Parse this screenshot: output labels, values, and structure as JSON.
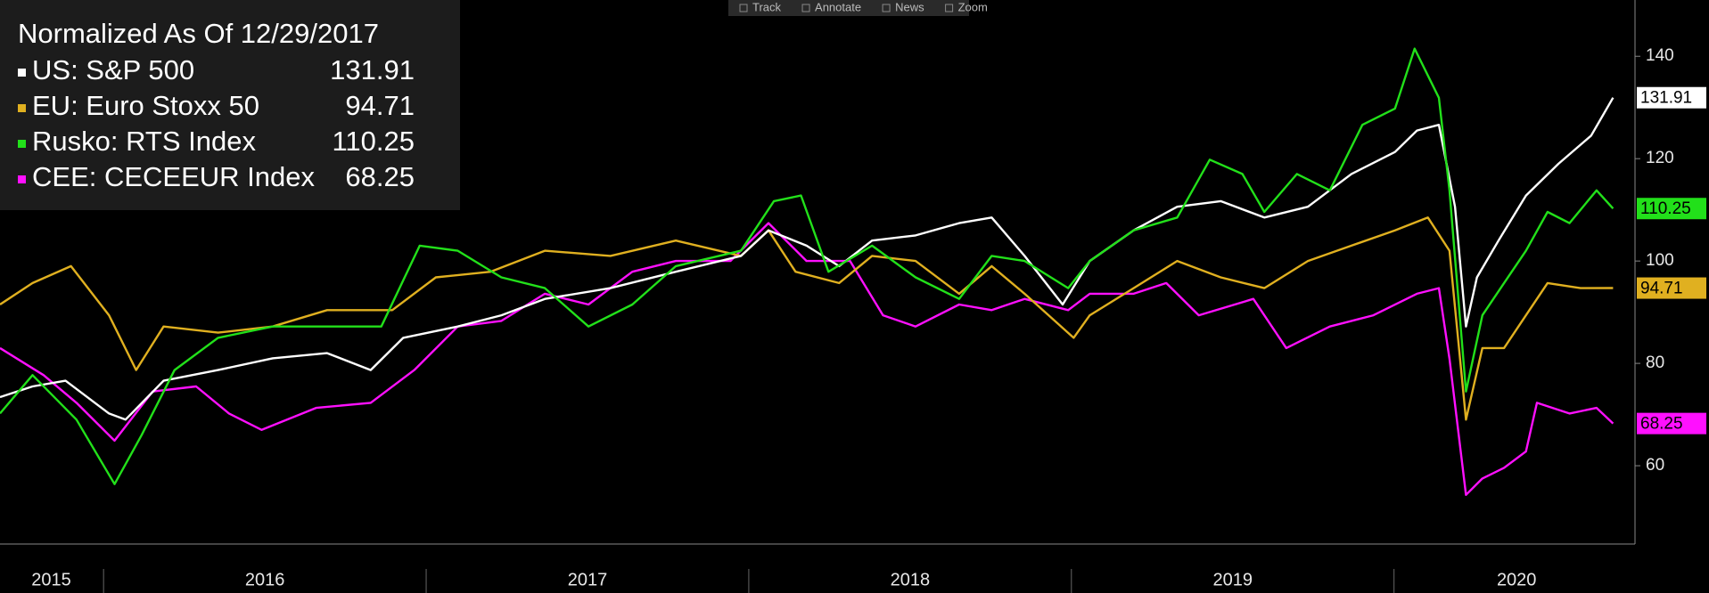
{
  "chart_data": {
    "type": "line",
    "title": "Normalized As Of 12/29/2017",
    "toolbar": [
      "Track",
      "Annotate",
      "News",
      "Zoom"
    ],
    "xlim": [
      2015.679,
      2020.747
    ],
    "ylim": [
      44.7,
      151
    ],
    "yticks": [
      60,
      80,
      100,
      120,
      140
    ],
    "xticks": [
      {
        "value": 2015.838,
        "label": "2015"
      },
      {
        "value": 2016.5,
        "label": "2016"
      },
      {
        "value": 2017.5,
        "label": "2017"
      },
      {
        "value": 2018.5,
        "label": "2018"
      },
      {
        "value": 2019.5,
        "label": "2019"
      },
      {
        "value": 2020.38,
        "label": "2020"
      }
    ],
    "xminor": [
      2016,
      2017,
      2018,
      2019,
      2020
    ],
    "series": [
      {
        "name": "US: S&P 500",
        "last": "131.91",
        "color": "#ffffff",
        "x": [
          2015.679,
          2015.78,
          2015.882,
          2016.017,
          2016.068,
          2016.186,
          2016.355,
          2016.524,
          2016.693,
          2016.828,
          2016.929,
          2017.098,
          2017.233,
          2017.368,
          2017.571,
          2017.774,
          2017.976,
          2018.061,
          2018.179,
          2018.28,
          2018.382,
          2018.517,
          2018.652,
          2018.753,
          2018.855,
          2018.973,
          2019.057,
          2019.193,
          2019.328,
          2019.463,
          2019.598,
          2019.733,
          2019.868,
          2020.003,
          2020.071,
          2020.139,
          2020.189,
          2020.223,
          2020.257,
          2020.324,
          2020.409,
          2020.51,
          2020.611,
          2020.679
        ],
        "values": [
          73.4,
          75.5,
          76.6,
          70.2,
          69,
          76.6,
          78.7,
          81,
          82,
          78.7,
          85,
          87.2,
          89.4,
          92.6,
          94.7,
          97.9,
          101,
          106,
          103,
          99,
          104,
          105,
          107.4,
          108.5,
          101,
          91.5,
          100,
          106,
          110.6,
          111.7,
          108.5,
          110.6,
          117,
          121.3,
          125.5,
          126.6,
          110.6,
          87.2,
          96.8,
          104,
          112.8,
          119,
          124.5,
          131.91
        ]
      },
      {
        "name": "EU: Euro Stoxx 50",
        "last": "94.71",
        "color": "#e0b020",
        "x": [
          2015.679,
          2015.78,
          2015.899,
          2016.017,
          2016.101,
          2016.186,
          2016.355,
          2016.524,
          2016.693,
          2016.895,
          2017.03,
          2017.199,
          2017.368,
          2017.571,
          2017.774,
          2017.976,
          2018.061,
          2018.145,
          2018.28,
          2018.382,
          2018.517,
          2018.652,
          2018.753,
          2018.855,
          2019.007,
          2019.057,
          2019.193,
          2019.328,
          2019.463,
          2019.598,
          2019.733,
          2019.868,
          2020.003,
          2020.105,
          2020.172,
          2020.223,
          2020.274,
          2020.341,
          2020.409,
          2020.476,
          2020.578,
          2020.679
        ],
        "values": [
          91.5,
          95.7,
          99,
          89.4,
          78.7,
          87.2,
          86,
          87.2,
          90.4,
          90.4,
          96.8,
          97.9,
          102,
          101,
          104,
          101,
          106,
          97.9,
          95.7,
          101,
          100,
          93.6,
          99,
          93.6,
          85,
          89.4,
          94.7,
          100,
          96.8,
          94.7,
          100,
          103,
          106,
          108.5,
          102,
          69,
          83,
          83,
          89.4,
          95.7,
          94.7,
          94.71
        ]
      },
      {
        "name": "Rusko: RTS Index",
        "last": "110.25",
        "color": "#22e01a",
        "x": [
          2015.679,
          2015.78,
          2015.916,
          2016.034,
          2016.118,
          2016.22,
          2016.355,
          2016.524,
          2016.693,
          2016.861,
          2016.98,
          2017.098,
          2017.233,
          2017.368,
          2017.503,
          2017.639,
          2017.774,
          2017.976,
          2018.078,
          2018.162,
          2018.247,
          2018.382,
          2018.517,
          2018.652,
          2018.753,
          2018.855,
          2018.99,
          2019.057,
          2019.193,
          2019.328,
          2019.429,
          2019.53,
          2019.598,
          2019.699,
          2019.801,
          2019.902,
          2020.003,
          2020.064,
          2020.139,
          2020.172,
          2020.223,
          2020.274,
          2020.341,
          2020.409,
          2020.476,
          2020.544,
          2020.628,
          2020.679
        ],
        "values": [
          70.2,
          77.7,
          69,
          56.4,
          66,
          78.7,
          85,
          87.2,
          87.2,
          87.2,
          103,
          102,
          96.8,
          94.7,
          87.2,
          91.5,
          99,
          102,
          111.7,
          112.8,
          97.9,
          103,
          96.8,
          92.6,
          101,
          100,
          94.7,
          100,
          106,
          108.5,
          119.8,
          117,
          109.6,
          117,
          113.8,
          126.6,
          129.8,
          141.5,
          131.9,
          113.8,
          74.5,
          89.4,
          95.7,
          102,
          109.6,
          107.4,
          113.8,
          110.25
        ]
      },
      {
        "name": "CEE: CECEEUR Index",
        "last": "68.25",
        "color": "#ff10ff",
        "x": [
          2015.679,
          2015.814,
          2015.916,
          2016.034,
          2016.152,
          2016.287,
          2016.389,
          2016.49,
          2016.659,
          2016.828,
          2016.963,
          2017.098,
          2017.233,
          2017.368,
          2017.503,
          2017.639,
          2017.774,
          2017.943,
          2018.061,
          2018.179,
          2018.314,
          2018.416,
          2018.517,
          2018.652,
          2018.753,
          2018.855,
          2018.99,
          2019.057,
          2019.193,
          2019.294,
          2019.395,
          2019.564,
          2019.666,
          2019.801,
          2019.936,
          2020.071,
          2020.139,
          2020.172,
          2020.223,
          2020.274,
          2020.341,
          2020.409,
          2020.443,
          2020.544,
          2020.628,
          2020.679
        ],
        "values": [
          83,
          77.7,
          72.3,
          64.9,
          74.5,
          75.5,
          70.2,
          67,
          71.3,
          72.3,
          78.7,
          87.2,
          88.3,
          93.6,
          91.5,
          97.9,
          100,
          100,
          107.4,
          100,
          100,
          89.4,
          87.2,
          91.5,
          90.4,
          92.6,
          90.4,
          93.6,
          93.6,
          95.7,
          89.4,
          92.6,
          83,
          87.2,
          89.4,
          93.6,
          94.7,
          80.9,
          54.3,
          57.5,
          59.6,
          62.8,
          72.3,
          70.2,
          71.3,
          68.25
        ]
      }
    ]
  }
}
